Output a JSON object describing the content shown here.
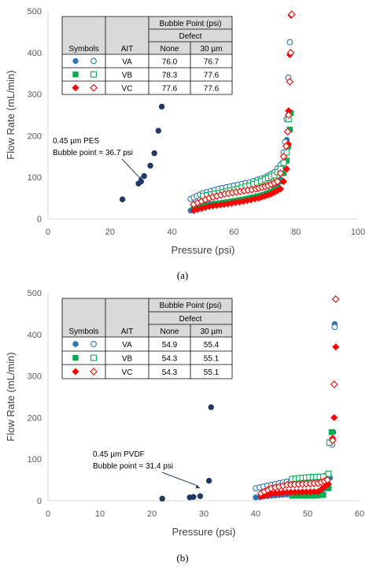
{
  "chart_data": [
    {
      "type": "scatter",
      "panel_label": "(a)",
      "xlabel": "Pressure (psi)",
      "ylabel": "Flow Rate (mL/min)",
      "xlim": [
        0,
        100
      ],
      "ylim": [
        0,
        500
      ],
      "xticks": [
        "0",
        "20",
        "40",
        "60",
        "80",
        "100"
      ],
      "yticks": [
        "0",
        "100",
        "200",
        "300",
        "400",
        "500"
      ],
      "grid": false,
      "annotation": {
        "lines": [
          "0.45 µm PES",
          "Bubble point = 36.7 psi"
        ],
        "arrow_to": [
          30.5,
          92
        ]
      },
      "table": {
        "header_group": "Bubble Point (psi)",
        "header_sub": "Defect",
        "columns": [
          "Symbols",
          "AIT",
          "None",
          "30 µm"
        ],
        "rows": [
          {
            "ait": "VA",
            "none": "76.0",
            "defect": "76.7",
            "color": "#2e75b6",
            "marker": "circle"
          },
          {
            "ait": "VB",
            "none": "78.3",
            "defect": "77.6",
            "color": "#00b050",
            "marker": "square"
          },
          {
            "ait": "VC",
            "none": "77.6",
            "defect": "77.6",
            "color": "#ff0000",
            "marker": "diamond"
          }
        ]
      },
      "series": [
        {
          "marker": "circle",
          "filled": true,
          "color": "#1f3864",
          "anchors": [
            [
              24,
              47
            ],
            [
              29.2,
              85
            ],
            [
              30,
              90
            ],
            [
              31,
              103
            ],
            [
              33,
              128
            ],
            [
              34.3,
              158
            ],
            [
              35.6,
              212
            ],
            [
              36.7,
              270
            ]
          ],
          "density": 1
        },
        {
          "marker": "circle",
          "filled": true,
          "color": "#2e75b6",
          "anchors": [
            [
              46,
              20
            ],
            [
              48,
              32
            ],
            [
              55,
              38
            ],
            [
              62,
              45
            ],
            [
              68,
              55
            ],
            [
              72,
              65
            ],
            [
              74,
              80
            ],
            [
              75,
              95
            ],
            [
              76,
              120
            ],
            [
              76.5,
              160
            ],
            [
              77,
              190
            ],
            [
              77.5,
              250
            ]
          ],
          "density": 2
        },
        {
          "marker": "circle",
          "filled": false,
          "color": "#2e75b6",
          "anchors": [
            [
              46,
              48
            ],
            [
              50,
              62
            ],
            [
              55,
              72
            ],
            [
              60,
              80
            ],
            [
              65,
              88
            ],
            [
              70,
              100
            ],
            [
              73,
              112
            ],
            [
              75,
              130
            ],
            [
              76,
              160
            ],
            [
              76.5,
              185
            ],
            [
              77,
              240
            ],
            [
              77.5,
              340
            ],
            [
              78,
              425
            ]
          ],
          "density": 2
        },
        {
          "marker": "square",
          "filled": true,
          "color": "#00b050",
          "anchors": [
            [
              47,
              25
            ],
            [
              52,
              33
            ],
            [
              58,
              40
            ],
            [
              64,
              48
            ],
            [
              70,
              58
            ],
            [
              74,
              72
            ],
            [
              75.5,
              90
            ],
            [
              76,
              110
            ],
            [
              77,
              140
            ],
            [
              77.5,
              175
            ],
            [
              78,
              215
            ],
            [
              78.3,
              255
            ]
          ],
          "density": 2
        },
        {
          "marker": "square",
          "filled": false,
          "color": "#00b050",
          "anchors": [
            [
              50,
              55
            ],
            [
              55,
              62
            ],
            [
              60,
              70
            ],
            [
              65,
              80
            ],
            [
              70,
              95
            ],
            [
              73,
              105
            ],
            [
              75,
              120
            ],
            [
              76,
              135
            ],
            [
              77,
              160
            ],
            [
              77.6,
              240
            ]
          ],
          "density": 2
        },
        {
          "marker": "diamond",
          "filled": true,
          "color": "#ff0000",
          "anchors": [
            [
              47,
              20
            ],
            [
              52,
              30
            ],
            [
              58,
              36
            ],
            [
              63,
              42
            ],
            [
              68,
              50
            ],
            [
              72,
              60
            ],
            [
              75,
              72
            ],
            [
              76,
              90
            ],
            [
              77,
              120
            ],
            [
              77.5,
              180
            ],
            [
              77.6,
              260
            ],
            [
              78,
              395
            ],
            [
              78.4,
              490
            ]
          ],
          "density": 2
        },
        {
          "marker": "diamond",
          "filled": false,
          "color": "#ff0000",
          "anchors": [
            [
              47,
              35
            ],
            [
              52,
              50
            ],
            [
              57,
              60
            ],
            [
              62,
              66
            ],
            [
              67,
              72
            ],
            [
              71,
              80
            ],
            [
              74,
              90
            ],
            [
              75,
              110
            ],
            [
              76,
              150
            ],
            [
              76.8,
              175
            ],
            [
              77.3,
              210
            ],
            [
              77.6,
              250
            ],
            [
              78,
              330
            ],
            [
              78.3,
              400
            ],
            [
              78.6,
              492
            ]
          ],
          "density": 2
        }
      ]
    },
    {
      "type": "scatter",
      "panel_label": "(b)",
      "xlabel": "Pressure (psi)",
      "ylabel": "Flow Rate (mL/min)",
      "xlim": [
        0,
        60
      ],
      "ylim": [
        0,
        500
      ],
      "xticks": [
        "0",
        "10",
        "20",
        "30",
        "40",
        "50",
        "60"
      ],
      "yticks": [
        "0",
        "100",
        "200",
        "300",
        "400",
        "500"
      ],
      "grid": false,
      "annotation": {
        "lines": [
          "0.45 µm PVDF",
          "Bubble point = 31.4 psi"
        ],
        "arrow_to": [
          29.3,
          30
        ]
      },
      "table": {
        "header_group": "Bubble Point (psi)",
        "header_sub": "Defect",
        "columns": [
          "Symbols",
          "AIT",
          "None",
          "30 µm"
        ],
        "rows": [
          {
            "ait": "VA",
            "none": "54.9",
            "defect": "55.4",
            "color": "#2e75b6",
            "marker": "circle"
          },
          {
            "ait": "VB",
            "none": "54.3",
            "defect": "55.1",
            "color": "#00b050",
            "marker": "square"
          },
          {
            "ait": "VC",
            "none": "54.3",
            "defect": "55.1",
            "color": "#ff0000",
            "marker": "diamond"
          }
        ]
      },
      "series": [
        {
          "marker": "circle",
          "filled": true,
          "color": "#1f3864",
          "anchors": [
            [
              22,
              5
            ],
            [
              27.3,
              8
            ],
            [
              28,
              9
            ],
            [
              29.3,
              11
            ],
            [
              31,
              48
            ],
            [
              31.4,
              225
            ]
          ],
          "density": 1
        },
        {
          "marker": "circle",
          "filled": true,
          "color": "#2e75b6",
          "anchors": [
            [
              40,
              8
            ],
            [
              43,
              12
            ],
            [
              46,
              15
            ],
            [
              49,
              18
            ],
            [
              52,
              20
            ],
            [
              53.5,
              30
            ],
            [
              54.3,
              55
            ],
            [
              54.9,
              165
            ],
            [
              55.2,
              425
            ]
          ],
          "density": 2
        },
        {
          "marker": "circle",
          "filled": false,
          "color": "#2e75b6",
          "anchors": [
            [
              40,
              30
            ],
            [
              43,
              38
            ],
            [
              46,
              46
            ],
            [
              49,
              52
            ],
            [
              52,
              55
            ],
            [
              54,
              62
            ],
            [
              54.7,
              135
            ],
            [
              55.2,
              418
            ]
          ],
          "density": 2
        },
        {
          "marker": "square",
          "filled": true,
          "color": "#00b050",
          "anchors": [
            [
              47,
              12
            ],
            [
              49,
              12
            ],
            [
              51,
              12
            ],
            [
              53,
              14
            ],
            [
              54,
              30
            ],
            [
              54.6,
              165
            ]
          ],
          "density": 2
        },
        {
          "marker": "square",
          "filled": false,
          "color": "#00b050",
          "anchors": [
            [
              47,
              52
            ],
            [
              49,
              55
            ],
            [
              51,
              57
            ],
            [
              53,
              58
            ],
            [
              54,
              65
            ],
            [
              54.2,
              140
            ]
          ],
          "density": 2
        },
        {
          "marker": "diamond",
          "filled": true,
          "color": "#ff0000",
          "anchors": [
            [
              41,
              10
            ],
            [
              43,
              17
            ],
            [
              46,
              20
            ],
            [
              49,
              21
            ],
            [
              52,
              22
            ],
            [
              54,
              40
            ],
            [
              54.8,
              150
            ],
            [
              55.1,
              200
            ],
            [
              55.4,
              370
            ]
          ],
          "density": 2
        },
        {
          "marker": "diamond",
          "filled": false,
          "color": "#ff0000",
          "anchors": [
            [
              41,
              18
            ],
            [
              43,
              30
            ],
            [
              46,
              38
            ],
            [
              49,
              40
            ],
            [
              52,
              42
            ],
            [
              53.8,
              50
            ],
            [
              54.8,
              145
            ],
            [
              55.1,
              280
            ],
            [
              55.4,
              485
            ]
          ],
          "density": 2
        }
      ]
    }
  ]
}
